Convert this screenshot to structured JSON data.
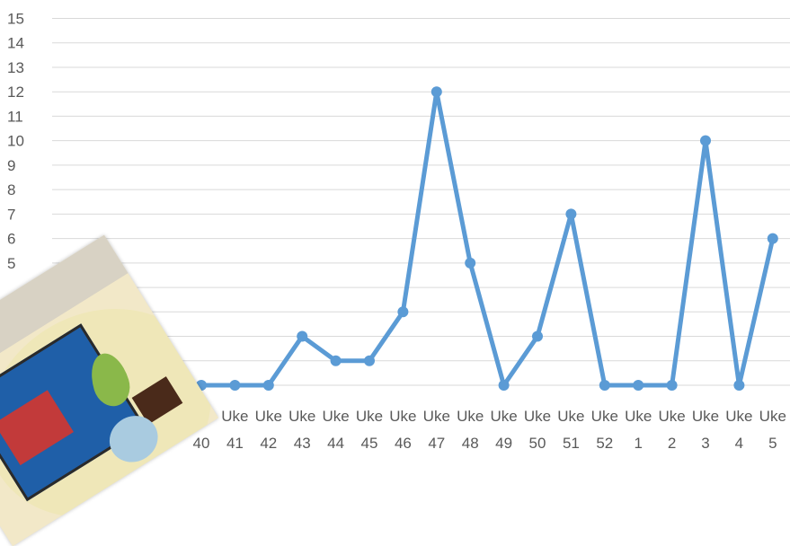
{
  "chart_data": {
    "type": "line",
    "title": "",
    "xlabel": "",
    "ylabel": "",
    "ylim": [
      0,
      15
    ],
    "yticks": [
      15,
      14,
      13,
      12,
      11,
      10,
      9,
      8,
      7,
      6,
      5
    ],
    "grid": true,
    "legend": "none",
    "category_prefix": "Uke",
    "categories": [
      "40",
      "41",
      "42",
      "43",
      "44",
      "45",
      "46",
      "47",
      "48",
      "49",
      "50",
      "51",
      "52",
      "1",
      "2",
      "3",
      "4",
      "5"
    ],
    "series": [
      {
        "color": "#5b9bd5",
        "values": [
          0,
          0,
          0,
          2,
          1,
          1,
          3,
          12,
          5,
          0,
          2,
          7,
          0,
          0,
          0,
          10,
          0,
          6
        ]
      }
    ]
  },
  "colors": {
    "line": "#5b9bd5",
    "grid": "#d9d9d9",
    "text": "#595959"
  },
  "overlay": {
    "icon": "gift-photo-icon"
  }
}
